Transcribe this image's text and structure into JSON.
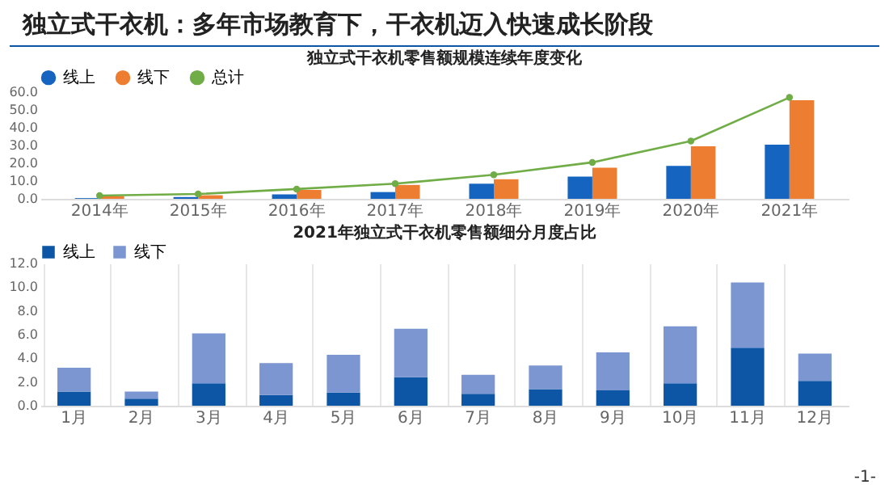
{
  "chart_data": [
    {
      "type": "bar",
      "title": "独立式干衣机零售额规模连续年度变化",
      "annotations": [
        "独立式干衣机：多年市场教育下，干衣机迈入快速成长阶段"
      ],
      "categories": [
        "2014年",
        "2015年",
        "2016年",
        "2017年",
        "2018年",
        "2019年",
        "2020年",
        "2021年"
      ],
      "series": [
        {
          "name": "线上",
          "color": "#1565c0",
          "values": [
            0.4,
            1.0,
            2.5,
            3.8,
            8.5,
            12.5,
            18.5,
            30.5
          ]
        },
        {
          "name": "线下",
          "color": "#ed7d31",
          "values": [
            1.5,
            2.0,
            5.0,
            7.8,
            11.0,
            17.5,
            29.5,
            55.5
          ]
        },
        {
          "name": "总计",
          "color": "#70ad47",
          "type": "line",
          "marker": "circle",
          "values": [
            1.8,
            2.7,
            5.5,
            8.5,
            13.5,
            20.5,
            32.5,
            57.0
          ]
        }
      ],
      "ylim": [
        0,
        60
      ],
      "yticks": [
        {
          "value": 0,
          "label": "0.0"
        },
        {
          "value": 10,
          "label": "10.0"
        },
        {
          "value": 20,
          "label": "20.0"
        },
        {
          "value": 30,
          "label": "30.0"
        },
        {
          "value": 40,
          "label": "40.0"
        },
        {
          "value": 50,
          "label": "50.0"
        },
        {
          "value": 60,
          "label": "60.0"
        }
      ],
      "grid": false,
      "legend": "top"
    },
    {
      "type": "bar",
      "title": "2021年独立式干衣机零售额细分月度占比",
      "annotations": [
        "-1-"
      ],
      "stacked": true,
      "categories": [
        "1月",
        "2月",
        "3月",
        "4月",
        "5月",
        "6月",
        "7月",
        "8月",
        "9月",
        "10月",
        "11月",
        "12月"
      ],
      "series": [
        {
          "name": "线上",
          "color": "#0d56a6",
          "values": [
            1.2,
            0.6,
            1.9,
            0.9,
            1.1,
            2.4,
            1.0,
            1.4,
            1.3,
            1.9,
            4.9,
            2.1
          ]
        },
        {
          "name": "线下",
          "color": "#7b96d0",
          "values": [
            2.0,
            0.6,
            4.2,
            2.7,
            3.2,
            4.1,
            1.6,
            2.0,
            3.2,
            4.8,
            5.5,
            2.3
          ]
        }
      ],
      "ylim": [
        0,
        12
      ],
      "yticks": [
        {
          "value": 0,
          "label": "0.0"
        },
        {
          "value": 2,
          "label": "2.0"
        },
        {
          "value": 4,
          "label": "4.0"
        },
        {
          "value": 6,
          "label": "6.0"
        },
        {
          "value": 8,
          "label": "8.0"
        },
        {
          "value": 10,
          "label": "10.0"
        },
        {
          "value": 12,
          "label": "12.0"
        }
      ],
      "grid": "x",
      "legend": "top"
    }
  ]
}
